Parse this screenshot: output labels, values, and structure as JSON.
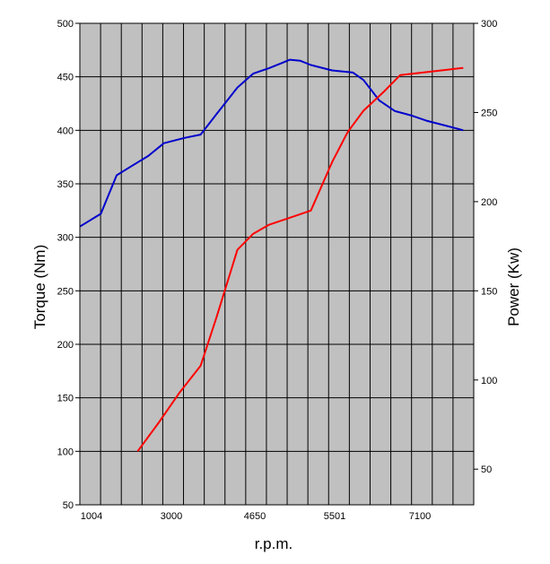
{
  "chart_data": {
    "type": "line",
    "xlabel": "r.p.m.",
    "ylabel_left": "Torque (Nm)",
    "ylabel_right": "Power (Kw)",
    "x_tick_labels": [
      "1004",
      "3000",
      "4650",
      "5501",
      "7100"
    ],
    "y_left_ticks": [
      50,
      100,
      150,
      200,
      250,
      300,
      350,
      400,
      450,
      500
    ],
    "y_right_ticks": [
      50,
      100,
      150,
      200,
      250,
      300
    ],
    "ylim_left": [
      50,
      500
    ],
    "ylim_right": [
      30,
      300
    ],
    "xlim": [
      1000,
      8500
    ],
    "grid": true,
    "series": [
      {
        "color": "#0000cc",
        "axis": "left",
        "x": [
          1000,
          1400,
          1700,
          2000,
          2300,
          2600,
          3000,
          3300,
          3600,
          4000,
          4300,
          4600,
          4850,
          5000,
          5200,
          5400,
          5800,
          6200,
          6400,
          6700,
          7000,
          7300,
          7600,
          8000,
          8300
        ],
        "values": [
          310,
          322,
          358,
          367,
          376,
          388,
          393,
          396,
          415,
          440,
          453,
          458,
          463,
          466,
          465,
          461,
          456,
          454,
          447,
          428,
          418,
          414,
          409,
          404,
          400
        ]
      },
      {
        "color": "#ff0000",
        "axis": "right",
        "x": [
          2100,
          2500,
          2900,
          3300,
          3600,
          4000,
          4300,
          4600,
          5000,
          5400,
          5800,
          6100,
          6400,
          6800,
          7100,
          7400,
          7700,
          8000,
          8300
        ],
        "values": [
          60,
          76,
          93,
          108,
          135,
          173,
          182,
          187,
          191,
          195,
          222,
          239,
          251,
          262,
          271,
          272,
          273,
          274,
          275
        ]
      }
    ]
  }
}
